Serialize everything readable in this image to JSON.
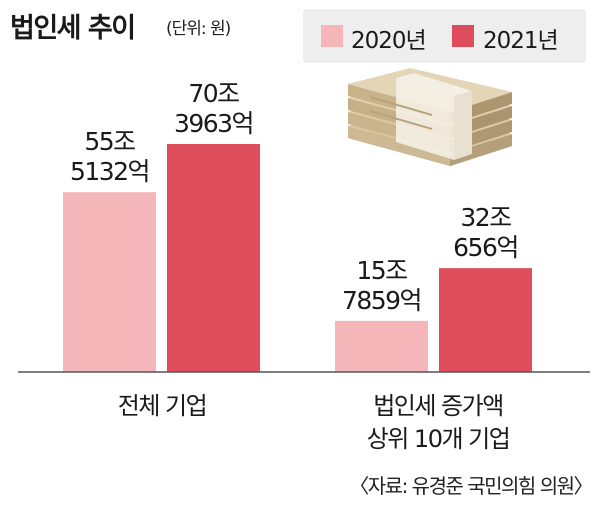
{
  "title": "법인세 추이",
  "unit": "(단위: 원)",
  "source": "〈자료: 유경준 국민의힘 의원〉",
  "chart_data": {
    "type": "bar",
    "categories": [
      {
        "label_lines": [
          "전체 기업"
        ]
      },
      {
        "label_lines": [
          "법인세 증가액",
          "상위 10개 기업"
        ]
      }
    ],
    "series": [
      {
        "name": "2020년",
        "color": "#f4b6b8",
        "values": [
          55.5132,
          15.7859
        ],
        "labels": [
          [
            "55조",
            "5132억"
          ],
          [
            "15조",
            "7859억"
          ]
        ]
      },
      {
        "name": "2021년",
        "color": "#de4d5b",
        "values": [
          70.3963,
          32.0656
        ],
        "labels": [
          [
            "70조",
            "3963억"
          ],
          [
            "32조",
            "656억"
          ]
        ]
      }
    ],
    "legend_position": "top-right",
    "value_unit": "조원",
    "grid": false
  }
}
